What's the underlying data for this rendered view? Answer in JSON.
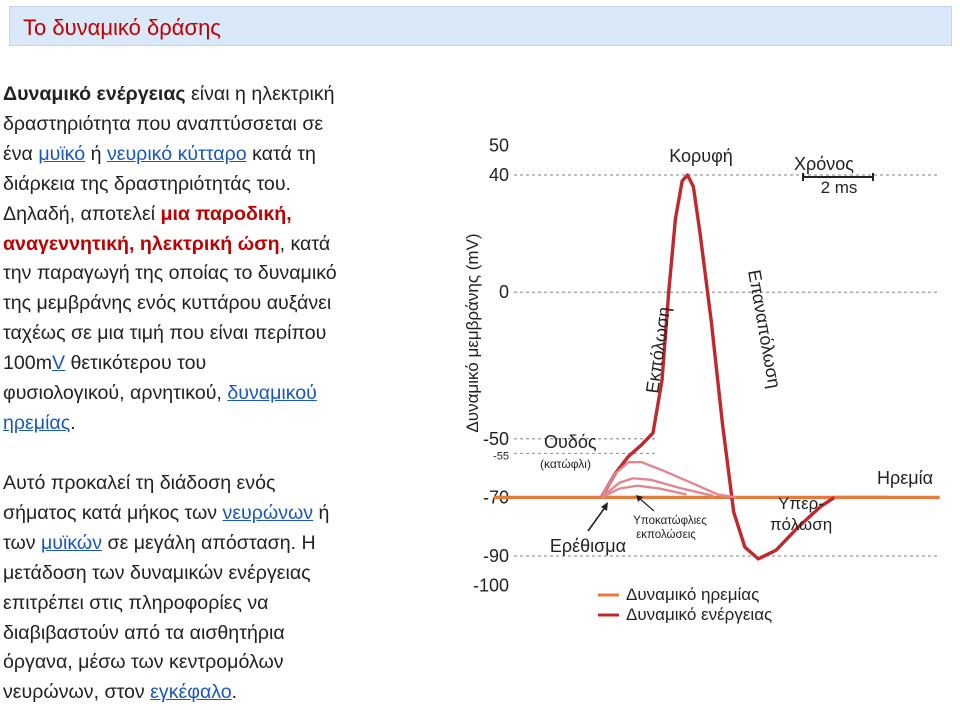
{
  "title": "Το δυναμικό δράσης",
  "para1": {
    "lines": [
      [
        {
          "t": "Δυναμικό ενέργειας",
          "s": "b"
        },
        {
          "t": " είναι η ηλεκτρική"
        }
      ],
      [
        {
          "t": "δραστηριότητα που αναπτύσσεται σε"
        }
      ],
      [
        {
          "t": "ένα "
        },
        {
          "t": "μυϊκό",
          "s": "lnk"
        },
        {
          "t": " ή "
        },
        {
          "t": "νευρικό κύτταρο",
          "s": "lnk"
        },
        {
          "t": " κατά τη"
        }
      ],
      [
        {
          "t": "διάρκεια της δραστηριότητάς του."
        }
      ],
      [
        {
          "t": "Δηλαδή, αποτελεί "
        },
        {
          "t": "μια παροδική,",
          "s": "red"
        }
      ],
      [
        {
          "t": "αναγεννητική, ηλεκτρική ώση",
          "s": "red"
        },
        {
          "t": ", κατά"
        }
      ],
      [
        {
          "t": "την παραγωγή της οποίας το δυναμικό"
        }
      ],
      [
        {
          "t": "της μεμβράνης ενός κυττάρου αυξάνει"
        }
      ],
      [
        {
          "t": "ταχέως σε μια τιμή που είναι περίπου"
        }
      ],
      [
        {
          "t": "100m"
        },
        {
          "t": "V",
          "s": "lnk"
        },
        {
          "t": " θετικότερου του"
        }
      ],
      [
        {
          "t": "φυσιολογικού, αρνητικού, "
        },
        {
          "t": "δυναμικού",
          "s": "lnk"
        }
      ],
      [
        {
          "t": "ηρεμίας",
          "s": "lnk"
        },
        {
          "t": "."
        }
      ]
    ]
  },
  "para2": {
    "lines": [
      [
        {
          "t": "Αυτό προκαλεί τη διάδοση ενός"
        }
      ],
      [
        {
          "t": "σήματος κατά μήκος των "
        },
        {
          "t": "νευρώνων",
          "s": "lnk"
        },
        {
          "t": " ή"
        }
      ],
      [
        {
          "t": "των "
        },
        {
          "t": "μυϊκών",
          "s": "lnk"
        },
        {
          "t": " σε μεγάλη απόσταση. Η"
        }
      ],
      [
        {
          "t": "μετάδοση των δυναμικών ενέργειας"
        }
      ],
      [
        {
          "t": "επιτρέπει στις πληροφορίες να"
        }
      ],
      [
        {
          "t": "διαβιβαστούν από τα αισθητήρια"
        }
      ],
      [
        {
          "t": "όργανα, μέσω των κεντρομόλων"
        }
      ],
      [
        {
          "t": "νευρώνων, στον "
        },
        {
          "t": "εγκέφαλο",
          "s": "lnk"
        },
        {
          "t": "."
        }
      ]
    ]
  },
  "chart_data": {
    "type": "line",
    "ylabel": "Δυναμικό μεμβράνης (mV)",
    "xlabel": "",
    "ylim": [
      -100,
      50
    ],
    "yticks": [
      50,
      40,
      0,
      -50,
      -55,
      -70,
      -90,
      -100
    ],
    "scale_bar": {
      "label_top": "Χρόνος",
      "label_bottom": "2 ms",
      "value_ms": 2
    },
    "annotations": {
      "peak": "Κορυφή",
      "depolarization": "Εκπόλωση",
      "repolarization": "Επαναπόλωση",
      "threshold": "Ουδός",
      "threshold_sub": "(κατώφλι)",
      "rest": "Ηρεμία",
      "hyper_1": "Υπερ-",
      "hyper_2": "πόλωση",
      "stimulus": "Ερέθισμα",
      "failed_1": "Υποκατώφλιες",
      "failed_2": "εκπολώσεις"
    },
    "series": [
      {
        "name": "Δυναμικό ηρεμίας",
        "color": "#e8793a",
        "points": [
          [
            0,
            -70
          ],
          [
            2.4,
            -70
          ],
          [
            7.6,
            -70
          ],
          [
            8.8,
            -70
          ]
        ]
      },
      {
        "name": "Δυναμικό ενέργειας",
        "color": "#c0282d",
        "points": [
          [
            2.4,
            -70
          ],
          [
            2.7,
            -62
          ],
          [
            3.0,
            -56
          ],
          [
            3.3,
            -52
          ],
          [
            3.55,
            -48
          ],
          [
            3.75,
            -30
          ],
          [
            3.9,
            0
          ],
          [
            4.05,
            25
          ],
          [
            4.2,
            38
          ],
          [
            4.32,
            40
          ],
          [
            4.45,
            36
          ],
          [
            4.6,
            20
          ],
          [
            4.85,
            -10
          ],
          [
            5.1,
            -45
          ],
          [
            5.35,
            -75
          ],
          [
            5.6,
            -87
          ],
          [
            5.9,
            -91
          ],
          [
            6.3,
            -88
          ],
          [
            6.8,
            -80
          ],
          [
            7.3,
            -73
          ],
          [
            7.6,
            -70
          ]
        ]
      },
      {
        "name": "Υποκατώφλιες εκπολώσεις",
        "color": "#e08890",
        "curves": [
          [
            [
              2.4,
              -70
            ],
            [
              2.7,
              -62
            ],
            [
              3.0,
              -58
            ],
            [
              3.3,
              -58
            ],
            [
              3.8,
              -61
            ],
            [
              4.4,
              -65
            ],
            [
              5.0,
              -69
            ],
            [
              5.4,
              -70
            ]
          ],
          [
            [
              2.4,
              -70
            ],
            [
              2.8,
              -65
            ],
            [
              3.1,
              -63.5
            ],
            [
              3.5,
              -64
            ],
            [
              4.2,
              -67
            ],
            [
              4.9,
              -69.5
            ]
          ],
          [
            [
              2.4,
              -70
            ],
            [
              2.8,
              -67
            ],
            [
              3.2,
              -66
            ],
            [
              3.7,
              -67
            ],
            [
              4.3,
              -69
            ]
          ]
        ]
      }
    ],
    "legend_position": "bottom-right"
  }
}
